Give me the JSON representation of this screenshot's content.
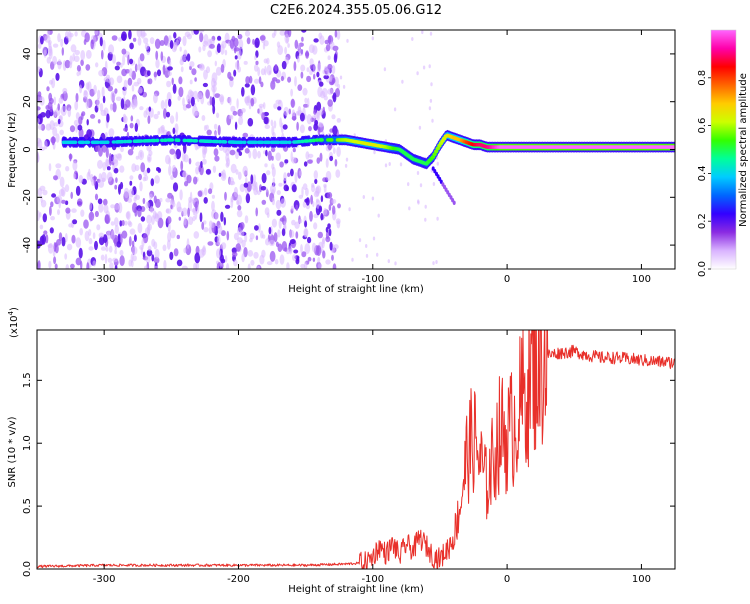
{
  "figure_title": "C2E6.2024.355.05.06.G12",
  "chart_data": [
    {
      "type": "heatmap",
      "xlabel": "Height of straight line (km)",
      "ylabel": "Frequency (Hz)",
      "xlim": [
        -350,
        125
      ],
      "ylim": [
        -50,
        50
      ],
      "x_ticks": [
        -300,
        -200,
        -100,
        0,
        100
      ],
      "y_ticks": [
        -40,
        -20,
        0,
        20,
        40
      ],
      "colorbar": {
        "label": "Normalized spectral amplitude",
        "range": [
          0,
          1
        ],
        "ticks": [
          0.0,
          0.2,
          0.4,
          0.6,
          0.8
        ],
        "colormap": [
          "#ffffff",
          "#d9b3ff",
          "#8a2be2",
          "#3300ff",
          "#0066ff",
          "#00ccff",
          "#00ff99",
          "#33ff00",
          "#ccff00",
          "#ffcc00",
          "#ff6600",
          "#ff0000",
          "#ff00aa",
          "#ff66ff"
        ]
      },
      "ridge": {
        "x": [
          -330,
          -300,
          -250,
          -200,
          -160,
          -140,
          -120,
          -100,
          -90,
          -80,
          -70,
          -60,
          -55,
          -50,
          -45,
          -40,
          -35,
          -30,
          -25,
          -20,
          -15,
          -10,
          -5,
          0,
          20,
          50,
          80,
          100,
          125
        ],
        "freq": [
          3,
          3,
          4,
          3,
          3,
          4,
          4,
          2,
          1,
          0,
          -4,
          -6,
          -3,
          2,
          6,
          5,
          4,
          3,
          2,
          2,
          1,
          1,
          1,
          1,
          1,
          1,
          1,
          1,
          1
        ],
        "amplitude": [
          0.4,
          0.4,
          0.45,
          0.4,
          0.4,
          0.5,
          0.6,
          0.65,
          0.6,
          0.5,
          0.5,
          0.5,
          0.55,
          0.6,
          0.65,
          0.7,
          0.7,
          0.8,
          0.85,
          0.9,
          0.9,
          0.95,
          1.0,
          1.0,
          1.0,
          1.0,
          1.0,
          1.0,
          1.0
        ]
      },
      "noise_region_x": [
        -350,
        -125
      ]
    },
    {
      "type": "line",
      "xlabel": "Height of straight line (km)",
      "ylabel": "SNR (10 * v/v)",
      "y_scale_label": "(x10",
      "y_scale_exponent": "4",
      "xlim": [
        -350,
        125
      ],
      "ylim": [
        0,
        1.9
      ],
      "x_ticks": [
        -300,
        -200,
        -100,
        0,
        100
      ],
      "y_ticks": [
        0.0,
        0.5,
        1.0,
        1.5
      ],
      "series": [
        {
          "color": "#e8302a",
          "x": [
            -350,
            -300,
            -250,
            -200,
            -150,
            -120,
            -105,
            -100,
            -95,
            -90,
            -85,
            -80,
            -75,
            -70,
            -65,
            -60,
            -55,
            -50,
            -45,
            -40,
            -35,
            -30,
            -25,
            -20,
            -15,
            -10,
            -5,
            0,
            5,
            10,
            15,
            20,
            25,
            30,
            40,
            50,
            60,
            70,
            80,
            90,
            100,
            110,
            125
          ],
          "y": [
            0.02,
            0.03,
            0.03,
            0.03,
            0.03,
            0.04,
            0.05,
            0.1,
            0.18,
            0.12,
            0.2,
            0.1,
            0.2,
            0.15,
            0.25,
            0.18,
            0.1,
            0.08,
            0.15,
            0.25,
            0.5,
            0.9,
            1.05,
            0.85,
            0.65,
            0.9,
            1.1,
            1.05,
            1.15,
            1.3,
            1.45,
            1.6,
            1.68,
            1.7,
            1.72,
            1.73,
            1.7,
            1.68,
            1.68,
            1.67,
            1.66,
            1.65,
            1.64
          ]
        }
      ]
    }
  ]
}
